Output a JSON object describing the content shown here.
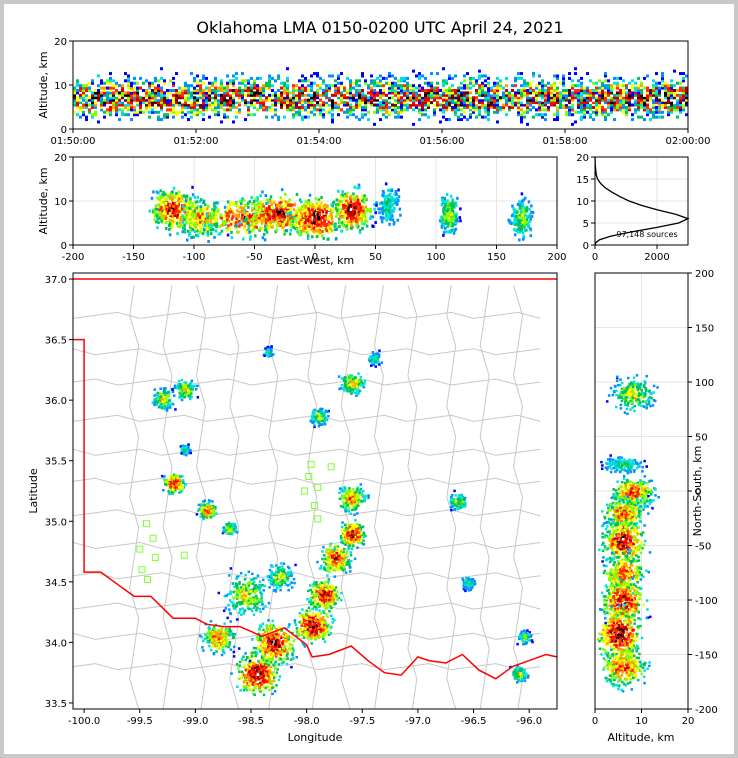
{
  "title": "Oklahoma LMA 0150-0200 UTC April 24, 2021",
  "colors": {
    "density": [
      "#0000ff",
      "#0090ff",
      "#00e0e0",
      "#00c060",
      "#80ff00",
      "#ffff00",
      "#ffa000",
      "#ff3000",
      "#ff0000",
      "#c80000",
      "#600000",
      "#000000",
      "#ffffff"
    ],
    "border": "#ff0000",
    "county": "#c8c8c8",
    "station": "#80ff30",
    "hist_line": "#000000"
  },
  "chart_data": [
    {
      "id": "time-altitude",
      "type": "heatmap",
      "ylabel": "Altitude, km",
      "xlim": [
        "01:50:00",
        "02:00:00"
      ],
      "ylim": [
        0,
        20
      ],
      "yticks": [
        0,
        10,
        20
      ],
      "xticks": [
        "01:50:00",
        "01:52:00",
        "01:54:00",
        "01:56:00",
        "01:58:00",
        "02:00:00"
      ],
      "source_altitude_band_km": [
        2,
        13
      ],
      "peak_altitude_km": 7
    },
    {
      "id": "east-west-altitude",
      "type": "heatmap",
      "xlabel": "East-West, km",
      "ylabel": "Altitude, km",
      "xlim": [
        -200,
        200
      ],
      "ylim": [
        0,
        20
      ],
      "xticks": [
        -200,
        -150,
        -100,
        -50,
        0,
        50,
        100,
        150,
        200
      ],
      "yticks": [
        0,
        10,
        20
      ],
      "clusters": [
        {
          "x": -118,
          "alt": 8,
          "w": 12,
          "d": 0.9
        },
        {
          "x": -95,
          "alt": 6,
          "w": 12,
          "d": 0.7
        },
        {
          "x": -60,
          "alt": 6,
          "w": 20,
          "d": 0.85
        },
        {
          "x": -30,
          "alt": 7,
          "w": 20,
          "d": 0.9
        },
        {
          "x": 0,
          "alt": 6,
          "w": 14,
          "d": 1.0
        },
        {
          "x": 30,
          "alt": 8,
          "w": 10,
          "d": 0.95
        },
        {
          "x": 60,
          "alt": 9,
          "w": 6,
          "d": 0.35
        },
        {
          "x": 110,
          "alt": 7,
          "w": 5,
          "d": 0.5
        },
        {
          "x": 170,
          "alt": 6,
          "w": 6,
          "d": 0.45
        }
      ]
    },
    {
      "id": "altitude-histogram",
      "type": "line",
      "xlim": [
        0,
        3000
      ],
      "ylim": [
        0,
        20
      ],
      "xticks": [
        0,
        2000
      ],
      "yticks": [
        0,
        5,
        10,
        15,
        20
      ],
      "annotation": "97,148 sources",
      "points": [
        [
          0,
          20
        ],
        [
          10,
          18
        ],
        [
          40,
          16
        ],
        [
          80,
          15
        ],
        [
          180,
          14
        ],
        [
          330,
          13
        ],
        [
          550,
          12
        ],
        [
          800,
          11
        ],
        [
          1100,
          10
        ],
        [
          1500,
          9
        ],
        [
          2000,
          8
        ],
        [
          2600,
          7
        ],
        [
          3000,
          6
        ],
        [
          2700,
          5
        ],
        [
          2000,
          4
        ],
        [
          1200,
          3
        ],
        [
          500,
          2
        ],
        [
          150,
          1.2
        ],
        [
          20,
          0.5
        ],
        [
          0,
          0
        ]
      ]
    },
    {
      "id": "plan-view",
      "type": "heatmap",
      "xlabel": "Longitude",
      "ylabel": "Latitude",
      "xlim": [
        -100.1,
        -95.75
      ],
      "ylim": [
        33.45,
        37.05
      ],
      "xticks": [
        -100.0,
        -99.5,
        -99.0,
        -98.5,
        -98.0,
        -97.5,
        -97.0,
        -96.5,
        -96.0
      ],
      "yticks": [
        33.5,
        34.0,
        34.5,
        35.0,
        35.5,
        36.0,
        36.5,
        37.0
      ],
      "clusters": [
        {
          "lon": -98.45,
          "lat": 33.75,
          "w": 0.12,
          "d": 1.0
        },
        {
          "lon": -98.3,
          "lat": 34.0,
          "w": 0.12,
          "d": 0.95
        },
        {
          "lon": -97.95,
          "lat": 34.15,
          "w": 0.1,
          "d": 1.0
        },
        {
          "lon": -97.85,
          "lat": 34.4,
          "w": 0.09,
          "d": 0.9
        },
        {
          "lon": -97.75,
          "lat": 34.7,
          "w": 0.09,
          "d": 0.8
        },
        {
          "lon": -97.6,
          "lat": 34.9,
          "w": 0.07,
          "d": 1.0
        },
        {
          "lon": -97.6,
          "lat": 35.2,
          "w": 0.08,
          "d": 0.7
        },
        {
          "lon": -98.8,
          "lat": 34.05,
          "w": 0.09,
          "d": 0.75
        },
        {
          "lon": -98.55,
          "lat": 34.4,
          "w": 0.13,
          "d": 0.55
        },
        {
          "lon": -98.25,
          "lat": 34.55,
          "w": 0.08,
          "d": 0.5
        },
        {
          "lon": -99.2,
          "lat": 35.32,
          "w": 0.06,
          "d": 0.9
        },
        {
          "lon": -98.9,
          "lat": 35.1,
          "w": 0.05,
          "d": 0.8
        },
        {
          "lon": -98.7,
          "lat": 34.95,
          "w": 0.04,
          "d": 0.55
        },
        {
          "lon": -99.3,
          "lat": 36.02,
          "w": 0.06,
          "d": 0.55
        },
        {
          "lon": -99.1,
          "lat": 36.1,
          "w": 0.06,
          "d": 0.55
        },
        {
          "lon": -97.9,
          "lat": 35.87,
          "w": 0.05,
          "d": 0.5
        },
        {
          "lon": -97.6,
          "lat": 36.15,
          "w": 0.07,
          "d": 0.6
        },
        {
          "lon": -96.65,
          "lat": 35.17,
          "w": 0.05,
          "d": 0.5
        },
        {
          "lon": -96.1,
          "lat": 33.75,
          "w": 0.05,
          "d": 0.5
        },
        {
          "lon": -96.05,
          "lat": 34.05,
          "w": 0.04,
          "d": 0.4
        },
        {
          "lon": -96.55,
          "lat": 34.5,
          "w": 0.04,
          "d": 0.35
        },
        {
          "lon": -99.1,
          "lat": 35.6,
          "w": 0.03,
          "d": 0.35
        },
        {
          "lon": -98.35,
          "lat": 36.4,
          "w": 0.03,
          "d": 0.3
        },
        {
          "lon": -97.4,
          "lat": 36.35,
          "w": 0.04,
          "d": 0.35
        }
      ],
      "stations": [
        [
          -97.96,
          35.47
        ],
        [
          -97.78,
          35.45
        ],
        [
          -97.98,
          35.37
        ],
        [
          -97.9,
          35.28
        ],
        [
          -98.02,
          35.25
        ],
        [
          -97.93,
          35.13
        ],
        [
          -97.9,
          35.02
        ],
        [
          -99.44,
          34.98
        ],
        [
          -99.38,
          34.86
        ],
        [
          -99.5,
          34.77
        ],
        [
          -99.36,
          34.7
        ],
        [
          -99.1,
          34.72
        ],
        [
          -99.48,
          34.6
        ],
        [
          -99.43,
          34.52
        ]
      ]
    },
    {
      "id": "north-south-altitude",
      "type": "heatmap",
      "xlabel": "Altitude, km",
      "ylabel": "North-South, km",
      "xlim": [
        0,
        20
      ],
      "ylim": [
        -200,
        200
      ],
      "xticks": [
        0,
        10,
        20
      ],
      "yticks": [
        -200,
        -150,
        -100,
        -50,
        0,
        50,
        100,
        150,
        200
      ],
      "clusters": [
        {
          "ns": 90,
          "alt": 8,
          "w": 10,
          "d": 0.55
        },
        {
          "ns": 25,
          "alt": 6,
          "w": 5,
          "d": 0.35
        },
        {
          "ns": 0,
          "alt": 8,
          "w": 8,
          "d": 0.8
        },
        {
          "ns": -20,
          "alt": 6,
          "w": 10,
          "d": 0.75
        },
        {
          "ns": -45,
          "alt": 6,
          "w": 12,
          "d": 0.95
        },
        {
          "ns": -75,
          "alt": 6,
          "w": 12,
          "d": 0.75
        },
        {
          "ns": -100,
          "alt": 6,
          "w": 12,
          "d": 0.95
        },
        {
          "ns": -130,
          "alt": 5,
          "w": 14,
          "d": 1.0
        },
        {
          "ns": -160,
          "alt": 6,
          "w": 12,
          "d": 0.8
        }
      ]
    }
  ]
}
